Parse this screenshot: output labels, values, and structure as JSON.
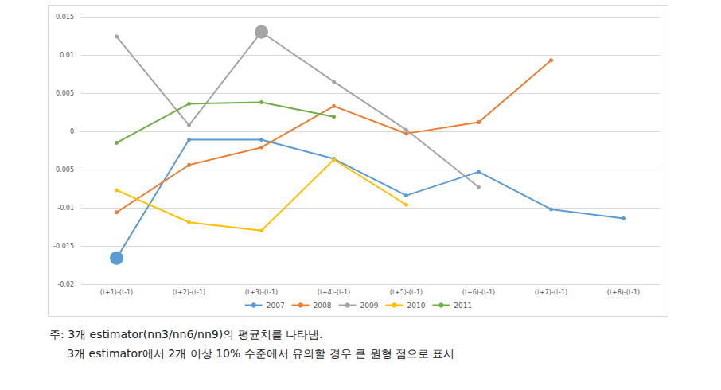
{
  "chart_data": {
    "type": "line",
    "categories": [
      "(t+1)-(t-1)",
      "(t+2)-(t-1)",
      "(t+3)-(t-1)",
      "(t+4)-(t-1)",
      "(t+5)-(t-1)",
      "(t+6)-(t-1)",
      "(t+7)-(t-1)",
      "(t+8)-(t-1)"
    ],
    "series": [
      {
        "name": "2007",
        "color": "#5b9bd5",
        "marker": "circle",
        "values": [
          -0.0166,
          -0.0011,
          -0.0011,
          -0.0036,
          -0.0084,
          -0.0053,
          -0.0102,
          -0.0114
        ],
        "significant": [
          true,
          false,
          false,
          false,
          false,
          false,
          false,
          false
        ]
      },
      {
        "name": "2008",
        "color": "#ed7d31",
        "marker": "circle",
        "values": [
          -0.0106,
          -0.0044,
          -0.0021,
          0.0033,
          -0.0003,
          0.0012,
          0.0093,
          null
        ],
        "significant": [
          false,
          false,
          false,
          false,
          false,
          false,
          false,
          false
        ]
      },
      {
        "name": "2009",
        "color": "#a5a5a5",
        "marker": "circle",
        "values": [
          0.0124,
          0.0008,
          0.013,
          0.0065,
          0.0002,
          -0.0073,
          null,
          null
        ],
        "significant": [
          false,
          false,
          true,
          false,
          false,
          false,
          false,
          false
        ]
      },
      {
        "name": "2010",
        "color": "#ffc000",
        "marker": "circle",
        "values": [
          -0.0077,
          -0.0119,
          -0.013,
          -0.0037,
          -0.0096,
          null,
          null,
          null
        ],
        "significant": [
          false,
          false,
          false,
          false,
          false,
          false,
          false,
          false
        ]
      },
      {
        "name": "2011",
        "color": "#70ad47",
        "marker": "circle",
        "values": [
          -0.0015,
          0.0036,
          0.0038,
          0.0019,
          null,
          null,
          null,
          null
        ],
        "significant": [
          false,
          false,
          false,
          false,
          false,
          false,
          false,
          false
        ]
      }
    ],
    "ylim": [
      -0.02,
      0.015
    ],
    "yticks": [
      -0.02,
      -0.015,
      -0.01,
      -0.005,
      0,
      0.005,
      0.01,
      0.015
    ],
    "grid": true,
    "legend": "bottom",
    "notes": [
      "주: 3개 estimator(nn3/nn6/nn9)의 평균치를 나타냄.",
      "     3개 estimator에서 2개 이상 10% 수준에서 유의할 경우 큰 원형 점으로 표시"
    ]
  }
}
